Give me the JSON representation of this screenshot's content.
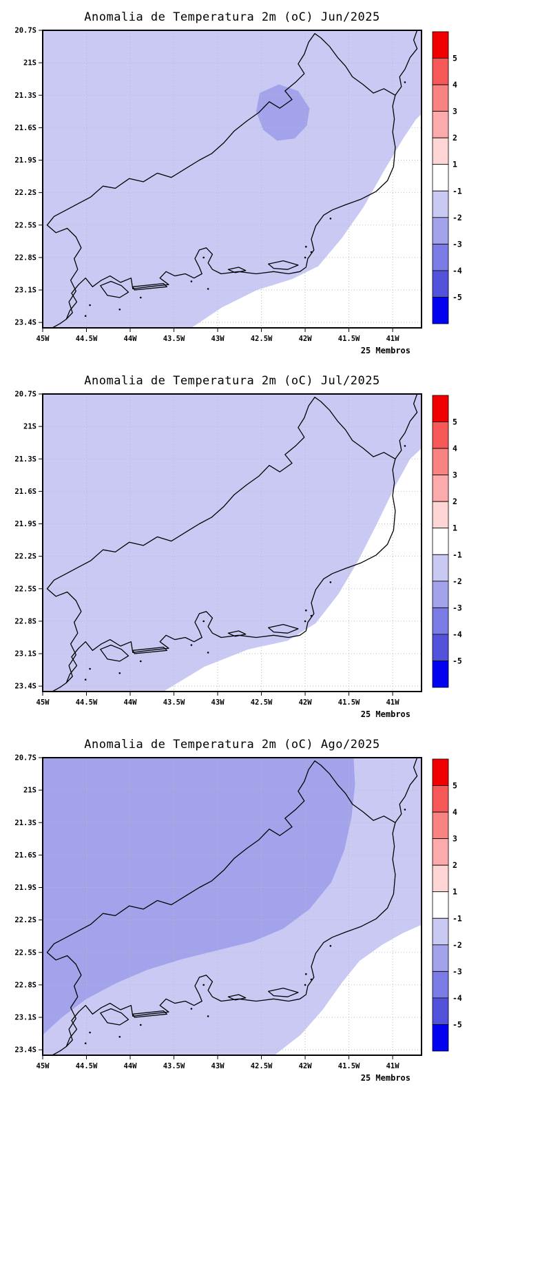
{
  "figure": {
    "background": "#ffffff"
  },
  "panels": [
    {
      "id": "jun",
      "title": "Anomalia de Temperatura 2m (oC) Jun/2025",
      "members_label": "25 Membros",
      "fill_regions": {
        "neutral_white": [
          [
            -43.3,
            -23.45
          ],
          [
            -42.95,
            -23.26
          ],
          [
            -42.55,
            -23.1
          ],
          [
            -42.15,
            -23.0
          ],
          [
            -41.85,
            -22.88
          ],
          [
            -41.58,
            -22.62
          ],
          [
            -41.33,
            -22.33
          ],
          [
            -41.1,
            -22.0
          ],
          [
            -40.88,
            -21.7
          ],
          [
            -40.73,
            -21.52
          ],
          [
            -40.6,
            -21.42
          ],
          [
            -40.6,
            -23.5
          ]
        ],
        "medium_blob": [
          [
            -42.52,
            -21.28
          ],
          [
            -42.3,
            -21.2
          ],
          [
            -42.08,
            -21.26
          ],
          [
            -41.95,
            -21.42
          ],
          [
            -41.98,
            -21.58
          ],
          [
            -42.12,
            -21.7
          ],
          [
            -42.32,
            -21.72
          ],
          [
            -42.48,
            -21.62
          ],
          [
            -42.56,
            -21.45
          ]
        ]
      }
    },
    {
      "id": "jul",
      "title": "Anomalia de Temperatura 2m (oC) Jul/2025",
      "members_label": "25 Membros",
      "fill_regions": {
        "neutral_white": [
          [
            -43.62,
            -23.45
          ],
          [
            -43.15,
            -23.22
          ],
          [
            -42.65,
            -23.06
          ],
          [
            -42.2,
            -22.98
          ],
          [
            -41.88,
            -22.82
          ],
          [
            -41.62,
            -22.55
          ],
          [
            -41.4,
            -22.25
          ],
          [
            -41.18,
            -21.9
          ],
          [
            -40.97,
            -21.55
          ],
          [
            -40.8,
            -21.3
          ],
          [
            -40.6,
            -21.15
          ],
          [
            -40.6,
            -23.5
          ]
        ]
      }
    },
    {
      "id": "ago",
      "title": "Anomalia de Temperatura 2m (oC) Ago/2025",
      "members_label": "25 Membros",
      "fill_regions": {
        "medium_area": [
          [
            -45.05,
            -23.3
          ],
          [
            -45.05,
            -20.65
          ],
          [
            -41.45,
            -20.65
          ],
          [
            -41.43,
            -20.95
          ],
          [
            -41.47,
            -21.25
          ],
          [
            -41.55,
            -21.55
          ],
          [
            -41.7,
            -21.85
          ],
          [
            -41.95,
            -22.1
          ],
          [
            -42.25,
            -22.28
          ],
          [
            -42.6,
            -22.4
          ],
          [
            -43.0,
            -22.48
          ],
          [
            -43.4,
            -22.56
          ],
          [
            -43.8,
            -22.66
          ],
          [
            -44.15,
            -22.78
          ],
          [
            -44.5,
            -22.93
          ],
          [
            -44.78,
            -23.1
          ]
        ],
        "neutral_white": [
          [
            -42.35,
            -23.45
          ],
          [
            -42.05,
            -23.26
          ],
          [
            -41.8,
            -23.03
          ],
          [
            -41.58,
            -22.78
          ],
          [
            -41.38,
            -22.58
          ],
          [
            -41.12,
            -22.43
          ],
          [
            -40.88,
            -22.32
          ],
          [
            -40.6,
            -22.22
          ],
          [
            -40.6,
            -23.5
          ]
        ]
      }
    }
  ],
  "axes": {
    "lon_range": [
      -45,
      -40.67
    ],
    "lat_range": [
      -23.45,
      -20.7
    ],
    "lon_ticks": [
      {
        "label": "45W",
        "value": -45
      },
      {
        "label": "44.5W",
        "value": -44.5
      },
      {
        "label": "44W",
        "value": -44
      },
      {
        "label": "43.5W",
        "value": -43.5
      },
      {
        "label": "43W",
        "value": -43
      },
      {
        "label": "42.5W",
        "value": -42.5
      },
      {
        "label": "42W",
        "value": -42
      },
      {
        "label": "41.5W",
        "value": -41.5
      },
      {
        "label": "41W",
        "value": -41
      }
    ],
    "lat_ticks": [
      {
        "label": "20.7S",
        "value": -20.7
      },
      {
        "label": "21S",
        "value": -21
      },
      {
        "label": "21.3S",
        "value": -21.3
      },
      {
        "label": "21.6S",
        "value": -21.6
      },
      {
        "label": "21.9S",
        "value": -21.9
      },
      {
        "label": "22.2S",
        "value": -22.2
      },
      {
        "label": "22.5S",
        "value": -22.5
      },
      {
        "label": "22.8S",
        "value": -22.8
      },
      {
        "label": "23.1S",
        "value": -23.1
      },
      {
        "label": "23.4S",
        "value": -23.4
      }
    ]
  },
  "colorbar": {
    "labels": [
      "5",
      "4",
      "3",
      "2",
      "1",
      "-1",
      "-2",
      "-3",
      "-4",
      "-5"
    ],
    "colors": [
      "#f00000",
      "#f65858",
      "#f88181",
      "#fbabab",
      "#fdd5d5",
      "#ffffff",
      "#c9c9f4",
      "#a3a3ec",
      "#7b7be5",
      "#5252dd",
      "#0202f0"
    ]
  },
  "colors": {
    "anomaly_light": "#c9c9f4",
    "anomaly_medium": "#a3a3ec",
    "neutral": "#ffffff",
    "coastline": "#000000",
    "grid": "#bbbbbb",
    "frame": "#000000"
  },
  "map": {
    "state_border": [
      [
        -40.97,
        -21.3
      ],
      [
        -41.1,
        -21.24
      ],
      [
        -41.22,
        -21.28
      ],
      [
        -41.34,
        -21.2
      ],
      [
        -41.46,
        -21.13
      ],
      [
        -41.54,
        -21.03
      ],
      [
        -41.63,
        -20.95
      ],
      [
        -41.72,
        -20.85
      ],
      [
        -41.82,
        -20.77
      ],
      [
        -41.89,
        -20.73
      ],
      [
        -41.96,
        -20.81
      ],
      [
        -42.01,
        -20.92
      ],
      [
        -42.08,
        -21.01
      ],
      [
        -42.01,
        -21.1
      ],
      [
        -42.11,
        -21.18
      ],
      [
        -42.23,
        -21.26
      ],
      [
        -42.15,
        -21.34
      ],
      [
        -42.29,
        -21.42
      ],
      [
        -42.41,
        -21.36
      ],
      [
        -42.53,
        -21.46
      ],
      [
        -42.67,
        -21.54
      ],
      [
        -42.81,
        -21.63
      ],
      [
        -42.93,
        -21.74
      ],
      [
        -43.07,
        -21.84
      ],
      [
        -43.21,
        -21.9
      ],
      [
        -43.37,
        -21.98
      ],
      [
        -43.53,
        -22.06
      ],
      [
        -43.69,
        -22.02
      ],
      [
        -43.85,
        -22.1
      ],
      [
        -44.01,
        -22.07
      ],
      [
        -44.17,
        -22.16
      ],
      [
        -44.31,
        -22.14
      ],
      [
        -44.45,
        -22.24
      ],
      [
        -44.59,
        -22.3
      ],
      [
        -44.73,
        -22.36
      ],
      [
        -44.87,
        -22.42
      ],
      [
        -44.95,
        -22.5
      ],
      [
        -44.85,
        -22.57
      ],
      [
        -44.72,
        -22.53
      ],
      [
        -44.62,
        -22.61
      ],
      [
        -44.56,
        -22.71
      ],
      [
        -44.64,
        -22.81
      ],
      [
        -44.6,
        -22.91
      ],
      [
        -44.68,
        -23.01
      ],
      [
        -44.62,
        -23.11
      ],
      [
        -44.7,
        -23.21
      ],
      [
        -44.66,
        -23.31
      ],
      [
        -44.73,
        -23.37
      ]
    ],
    "coastline": [
      [
        -40.72,
        -20.7
      ],
      [
        -40.76,
        -20.79
      ],
      [
        -40.72,
        -20.87
      ],
      [
        -40.8,
        -20.95
      ],
      [
        -40.86,
        -21.06
      ],
      [
        -40.92,
        -21.13
      ],
      [
        -40.9,
        -21.22
      ],
      [
        -40.97,
        -21.3
      ],
      [
        -41.0,
        -21.4
      ],
      [
        -40.98,
        -21.52
      ],
      [
        -41.0,
        -21.64
      ],
      [
        -40.97,
        -21.78
      ],
      [
        -40.99,
        -21.96
      ],
      [
        -41.06,
        -22.09
      ],
      [
        -41.19,
        -22.19
      ],
      [
        -41.36,
        -22.26
      ],
      [
        -41.53,
        -22.31
      ],
      [
        -41.69,
        -22.36
      ],
      [
        -41.79,
        -22.41
      ],
      [
        -41.88,
        -22.51
      ],
      [
        -41.93,
        -22.63
      ],
      [
        -41.9,
        -22.73
      ],
      [
        -41.97,
        -22.81
      ],
      [
        -41.99,
        -22.89
      ],
      [
        -42.06,
        -22.93
      ],
      [
        -42.19,
        -22.95
      ],
      [
        -42.36,
        -22.93
      ],
      [
        -42.56,
        -22.95
      ],
      [
        -42.76,
        -22.93
      ],
      [
        -42.96,
        -22.95
      ],
      [
        -43.06,
        -22.91
      ],
      [
        -43.11,
        -22.85
      ],
      [
        -43.06,
        -22.77
      ],
      [
        -43.13,
        -22.71
      ],
      [
        -43.21,
        -22.73
      ],
      [
        -43.26,
        -22.81
      ],
      [
        -43.21,
        -22.89
      ],
      [
        -43.18,
        -22.95
      ],
      [
        -43.27,
        -22.99
      ],
      [
        -43.37,
        -22.95
      ],
      [
        -43.49,
        -22.97
      ],
      [
        -43.59,
        -22.93
      ],
      [
        -43.66,
        -22.99
      ],
      [
        -43.56,
        -23.05
      ],
      [
        -43.79,
        -23.07
      ],
      [
        -43.97,
        -23.09
      ],
      [
        -43.99,
        -22.99
      ],
      [
        -44.11,
        -23.03
      ],
      [
        -44.23,
        -22.97
      ],
      [
        -44.33,
        -23.01
      ],
      [
        -44.43,
        -23.07
      ],
      [
        -44.51,
        -22.99
      ],
      [
        -44.59,
        -23.05
      ],
      [
        -44.67,
        -23.13
      ],
      [
        -44.61,
        -23.21
      ],
      [
        -44.69,
        -23.29
      ],
      [
        -44.73,
        -23.37
      ],
      [
        -44.8,
        -23.41
      ],
      [
        -44.89,
        -23.45
      ]
    ],
    "islands": [
      [
        [
          -44.34,
          -23.06
        ],
        [
          -44.22,
          -23.02
        ],
        [
          -44.1,
          -23.06
        ],
        [
          -44.02,
          -23.12
        ],
        [
          -44.12,
          -23.17
        ],
        [
          -44.26,
          -23.15
        ]
      ],
      [
        [
          -43.97,
          -23.07
        ],
        [
          -43.62,
          -23.04
        ],
        [
          -43.58,
          -23.07
        ],
        [
          -43.95,
          -23.1
        ]
      ]
    ],
    "lagoons": [
      [
        [
          -42.42,
          -22.86
        ],
        [
          -42.25,
          -22.83
        ],
        [
          -42.08,
          -22.87
        ],
        [
          -42.2,
          -22.91
        ],
        [
          -42.36,
          -22.9
        ]
      ],
      [
        [
          -42.88,
          -22.91
        ],
        [
          -42.76,
          -22.89
        ],
        [
          -42.68,
          -22.92
        ],
        [
          -42.8,
          -22.94
        ]
      ]
    ],
    "dots": [
      [
        -44.46,
        -23.24
      ],
      [
        -44.51,
        -23.34
      ],
      [
        -44.12,
        -23.28
      ],
      [
        -43.88,
        -23.17
      ],
      [
        -43.11,
        -23.09
      ],
      [
        -42.0,
        -22.8
      ],
      [
        -41.93,
        -22.75
      ],
      [
        -41.99,
        -22.7
      ],
      [
        -41.71,
        -22.44
      ],
      [
        -40.86,
        -21.18
      ],
      [
        -43.16,
        -22.8
      ],
      [
        -43.3,
        -23.02
      ]
    ]
  },
  "chart_data": [
    {
      "type": "heatmap",
      "title": "Anomalia de Temperatura 2m (oC) Jun/2025",
      "xlabel": "",
      "ylabel": "",
      "x_ticks": [
        "45W",
        "44.5W",
        "44W",
        "43.5W",
        "43W",
        "42.5W",
        "42W",
        "41.5W",
        "41W"
      ],
      "y_ticks": [
        "20.7S",
        "21S",
        "21.3S",
        "21.6S",
        "21.9S",
        "22.2S",
        "22.5S",
        "22.8S",
        "23.1S",
        "23.4S"
      ],
      "annotation": "25 Membros",
      "colorbar_levels": [
        5,
        4,
        3,
        2,
        1,
        -1,
        -2,
        -3,
        -4,
        -5
      ],
      "legend_position": "right",
      "anomaly_regions": [
        {
          "value_degC": "-2 to -1",
          "coverage": "nearly the entire domain (light blue)"
        },
        {
          "value_degC": "-3 to -2",
          "coverage": "small patch centered near 42.2W, 21.5S"
        },
        {
          "value_degC": "-1 to +1",
          "coverage": "southeastern offshore corner (white)"
        }
      ]
    },
    {
      "type": "heatmap",
      "title": "Anomalia de Temperatura 2m (oC) Jul/2025",
      "xlabel": "",
      "ylabel": "",
      "x_ticks": [
        "45W",
        "44.5W",
        "44W",
        "43.5W",
        "43W",
        "42.5W",
        "42W",
        "41.5W",
        "41W"
      ],
      "y_ticks": [
        "20.7S",
        "21S",
        "21.3S",
        "21.6S",
        "21.9S",
        "22.2S",
        "22.5S",
        "22.8S",
        "23.1S",
        "23.4S"
      ],
      "annotation": "25 Membros",
      "colorbar_levels": [
        5,
        4,
        3,
        2,
        1,
        -1,
        -2,
        -3,
        -4,
        -5
      ],
      "legend_position": "right",
      "anomaly_regions": [
        {
          "value_degC": "-2 to -1",
          "coverage": "nearly the entire domain (light blue)"
        },
        {
          "value_degC": "-1 to +1",
          "coverage": "southeastern offshore corner (white), larger than June"
        }
      ]
    },
    {
      "type": "heatmap",
      "title": "Anomalia de Temperatura 2m (oC) Ago/2025",
      "xlabel": "",
      "ylabel": "",
      "x_ticks": [
        "45W",
        "44.5W",
        "44W",
        "43.5W",
        "43W",
        "42.5W",
        "42W",
        "41.5W",
        "41W"
      ],
      "y_ticks": [
        "20.7S",
        "21S",
        "21.3S",
        "21.6S",
        "21.9S",
        "22.2S",
        "22.5S",
        "22.8S",
        "23.1S",
        "23.4S"
      ],
      "annotation": "25 Membros",
      "colorbar_levels": [
        5,
        4,
        3,
        2,
        1,
        -1,
        -2,
        -3,
        -4,
        -5
      ],
      "legend_position": "right",
      "anomaly_regions": [
        {
          "value_degC": "-3 to -2",
          "coverage": "large area over inland/northwest two-thirds of the domain (medium blue)"
        },
        {
          "value_degC": "-2 to -1",
          "coverage": "band along the south and east coast (light blue)"
        },
        {
          "value_degC": "-1 to +1",
          "coverage": "small southeastern offshore corner (white)"
        }
      ]
    }
  ]
}
